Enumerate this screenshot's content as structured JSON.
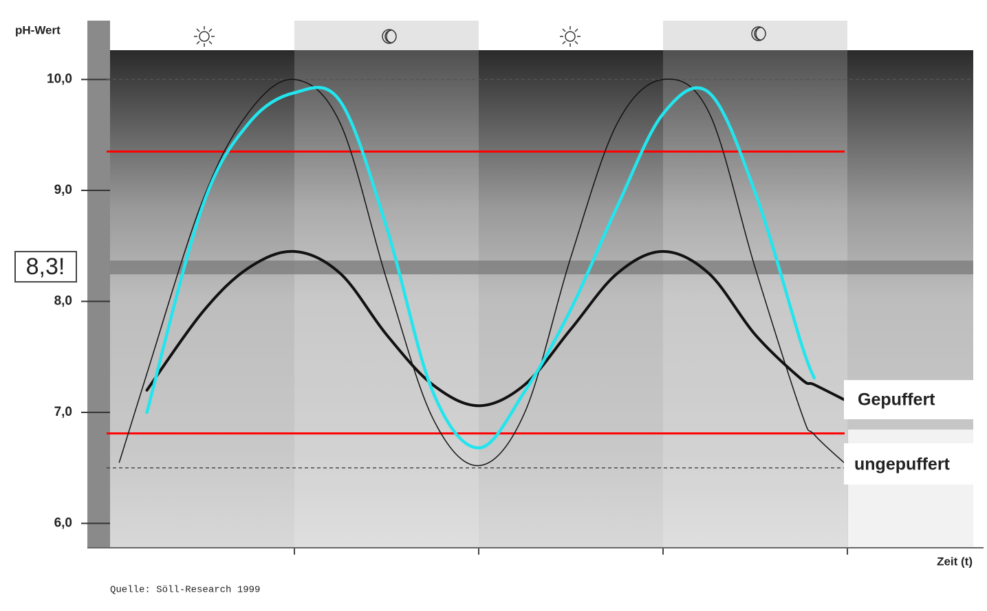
{
  "chart_data": {
    "type": "line",
    "y_label": "pH-Wert",
    "x_label": "Zeit (t)",
    "source": "Quelle: Söll-Research 1999",
    "x": [
      0.05,
      0.2,
      0.5,
      0.75,
      1,
      1.25,
      1.5,
      1.75,
      2,
      2.25,
      2.5,
      2.75,
      3,
      3.25,
      3.5,
      3.75,
      3.82,
      4
    ],
    "series": [
      {
        "name": "Gepuffert",
        "color": "#111111",
        "linewidth": 4,
        "values": [
          null,
          7.2,
          7.9,
          8.3,
          8.45,
          8.25,
          7.7,
          7.25,
          7.06,
          7.25,
          7.75,
          8.25,
          8.45,
          8.25,
          7.7,
          7.3,
          7.25,
          7.1
        ]
      },
      {
        "name": "ungepuffert",
        "color": "#111111",
        "linewidth": 1.5,
        "values": [
          6.55,
          7.35,
          8.9,
          9.7,
          10.0,
          9.6,
          8.2,
          6.95,
          6.52,
          7.0,
          8.4,
          9.6,
          10.0,
          9.7,
          8.3,
          7.0,
          6.8,
          6.52
        ]
      },
      {
        "color": "#22e5ee",
        "linewidth": 4.5,
        "values": [
          null,
          7.0,
          8.85,
          9.6,
          9.88,
          9.8,
          8.67,
          7.19,
          6.68,
          7.19,
          7.93,
          8.85,
          9.69,
          9.88,
          8.98,
          7.62,
          7.31,
          null
        ]
      }
    ],
    "xlim": [
      0,
      4.7
    ],
    "xticks": [
      1,
      2,
      3,
      4
    ],
    "ylim": [
      5.78,
      10.53
    ],
    "yticks": [
      {
        "value": 6,
        "label": "6,0"
      },
      {
        "value": 7,
        "label": "7,0"
      },
      {
        "value": 8,
        "label": "8,0"
      },
      {
        "value": 9,
        "label": "9,0"
      },
      {
        "value": 10,
        "label": "10,0"
      }
    ],
    "reference_lines": [
      {
        "value": 9.35,
        "color": "#ff0000",
        "style": "solid"
      },
      {
        "value": 6.81,
        "color": "#ff0000",
        "style": "solid"
      },
      {
        "value": 6.5,
        "color": "#333333",
        "style": "dashed"
      },
      {
        "value": 10,
        "color": "#555555",
        "style": "dashed"
      }
    ],
    "band": {
      "value": 8.3,
      "label": "8,3!"
    }
  }
}
